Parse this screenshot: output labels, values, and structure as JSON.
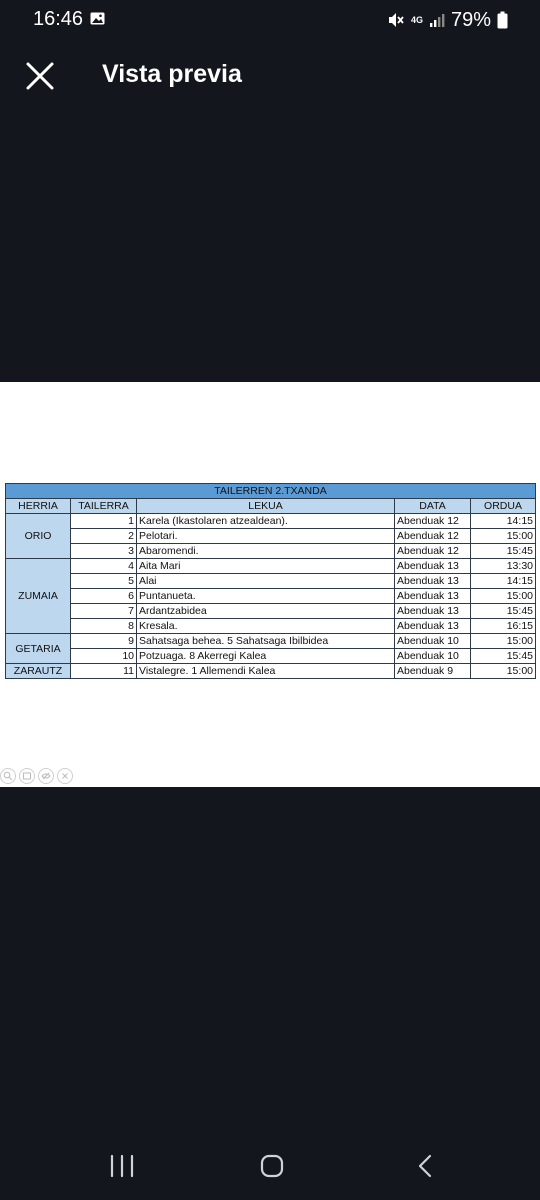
{
  "status_bar": {
    "time": "16:46",
    "battery": "79%",
    "network": "4G",
    "icons": [
      "image-icon",
      "mute-icon",
      "signal-icon",
      "battery-icon"
    ]
  },
  "app_bar": {
    "title": "Vista previa",
    "close_icon": "close-icon"
  },
  "document": {
    "table": {
      "title": "TAILERREN 2.TXANDA",
      "headers": [
        "HERRIA",
        "TAILERRA",
        "LEKUA",
        "DATA",
        "ORDUA"
      ],
      "groups": [
        {
          "herria": "ORIO",
          "rows": [
            {
              "tailerra": "1",
              "lekua": "Karela (Ikastolaren atzealdean).",
              "data": "Abenduak 12",
              "ordua": "14:15"
            },
            {
              "tailerra": "2",
              "lekua": "Pelotari.",
              "data": "Abenduak 12",
              "ordua": "15:00"
            },
            {
              "tailerra": "3",
              "lekua": "Abaromendi.",
              "data": "Abenduak 12",
              "ordua": "15:45"
            }
          ]
        },
        {
          "herria": "ZUMAIA",
          "rows": [
            {
              "tailerra": "4",
              "lekua": "Aita Mari",
              "data": "Abenduak 13",
              "ordua": "13:30"
            },
            {
              "tailerra": "5",
              "lekua": "Alai",
              "data": "Abenduak 13",
              "ordua": "14:15"
            },
            {
              "tailerra": "6",
              "lekua": "Puntanueta.",
              "data": "Abenduak 13",
              "ordua": "15:00"
            },
            {
              "tailerra": "7",
              "lekua": "Ardantzabidea",
              "data": "Abenduak 13",
              "ordua": "15:45"
            },
            {
              "tailerra": "8",
              "lekua": "Kresala.",
              "data": "Abenduak 13",
              "ordua": "16:15"
            }
          ]
        },
        {
          "herria": "GETARIA",
          "rows": [
            {
              "tailerra": "9",
              "lekua": "Sahatsaga behea. 5 Sahatsaga Ibilbidea",
              "data": "Abenduak 10",
              "ordua": "15:00"
            },
            {
              "tailerra": "10",
              "lekua": "Potzuaga. 8 Akerregi Kalea",
              "data": "Abenduak 10",
              "ordua": "15:45"
            }
          ]
        },
        {
          "herria": "ZARAUTZ",
          "rows": [
            {
              "tailerra": "11",
              "lekua": "Vistalegre. 1 Allemendi Kalea",
              "data": "Abenduak 9",
              "ordua": "15:00"
            }
          ]
        }
      ]
    },
    "zoom_tools": [
      "zoom-icon",
      "fit-icon",
      "hide-icon",
      "close-icon"
    ]
  },
  "nav_bar": {
    "buttons": [
      "recents-button",
      "home-button",
      "back-button"
    ]
  },
  "colors": {
    "background": "#13161d",
    "table_title_bg": "#5b9bd5",
    "table_header_bg": "#bdd7ee"
  }
}
